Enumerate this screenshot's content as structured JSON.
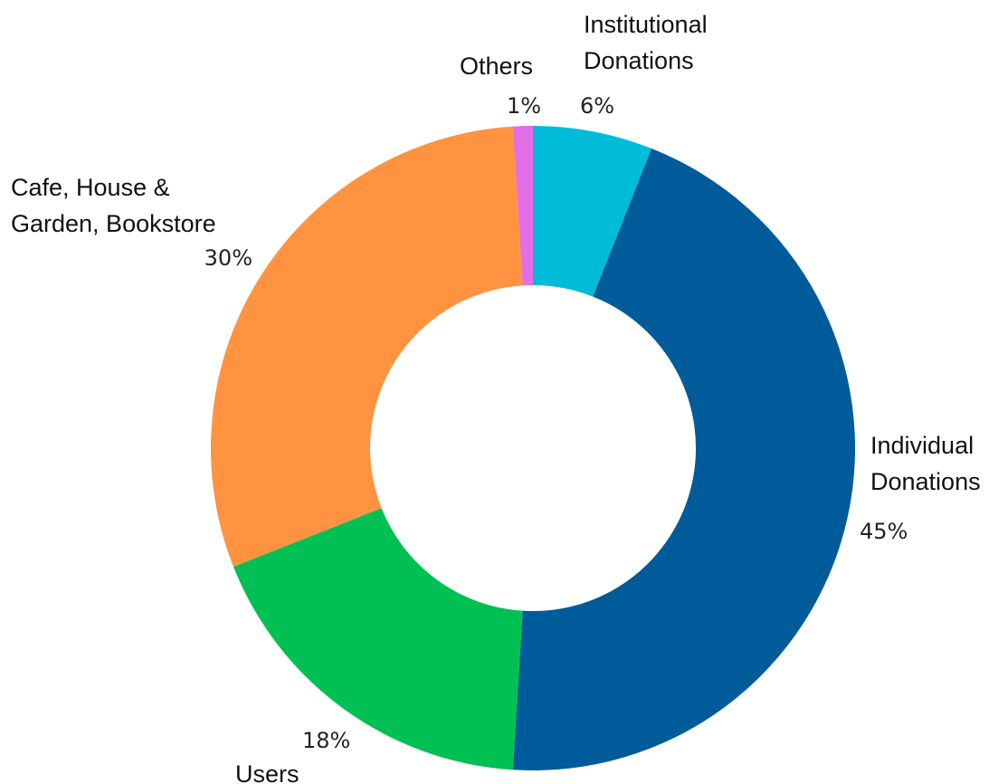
{
  "chart_data": {
    "type": "donut",
    "categories": [
      "Institutional Donations",
      "Individual Donations",
      "Users",
      "Cafe, House & Garden, Bookstore",
      "Others"
    ],
    "values": [
      6,
      45,
      18,
      30,
      1
    ],
    "value_labels": [
      "6%",
      "45%",
      "18%",
      "30%",
      "1%"
    ],
    "colors": [
      "#00bcd9",
      "#005b9a",
      "#00c053",
      "#ff9340",
      "#e46de8"
    ]
  }
}
